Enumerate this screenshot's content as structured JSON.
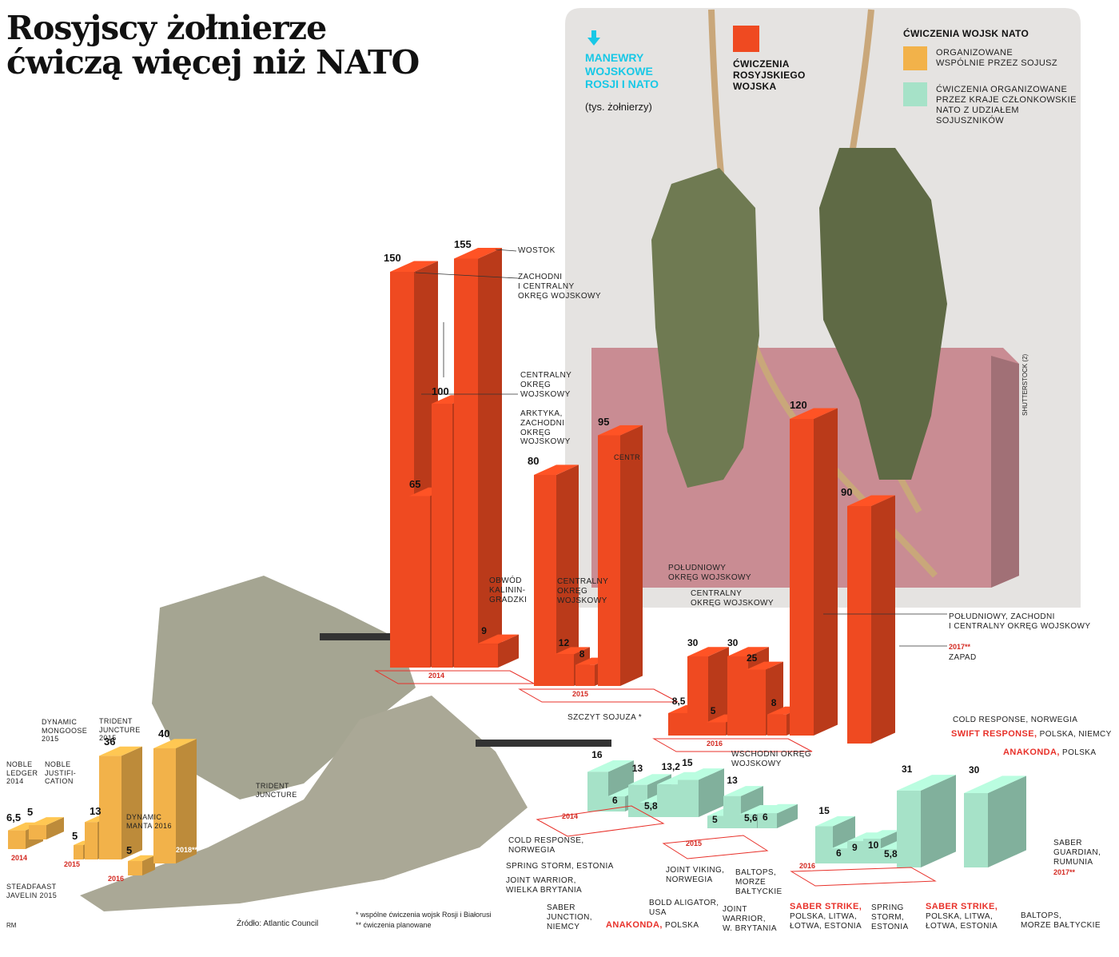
{
  "title": "Rosyjscy żołnierze\nćwiczą więcej niż NATO",
  "legend": {
    "maneuvers": "MANEWRY\nWOJSKOWE\nROSJI I NATO",
    "unit": "(tys. żołnierzy)",
    "russian": "ĆWICZENIA\nROSYJSKIEGO\nWOJSKA",
    "nato_header": "ĆWICZENIA WOJSK NATO",
    "alliance": "ORGANIZOWANE\nWSPÓLNIE PRZEZ SOJUSZ",
    "members": "ĆWICZENIA ORGANIZOWANE\nPRZEZ KRAJE CZŁONKOWSKIE\nNATO Z UDZIAŁEM\nSOJUSZNIKÓW"
  },
  "colors": {
    "russia": "#ef4a21",
    "alliance": "#f2b24a",
    "members": "#a6e2c8",
    "accent_red": "#e8312a",
    "cyan": "#19c8e6",
    "photo_bg": "#e5e3e1",
    "wall": "#c98c93"
  },
  "source": "Źródło: Atlantic Council",
  "footnote1": "* wspólne ćwiczenia wojsk Rosji i Białorusi",
  "footnote2": "** ćwiczenia planowane",
  "credit": "SHUTTERSTOCK (2)",
  "signature": "RM",
  "chart_data": [
    {
      "type": "bar",
      "name": "Ćwiczenia rosyjskiego wojska",
      "unit": "tys. żołnierzy",
      "groups": [
        {
          "year": "2014",
          "bars": [
            {
              "value": 150,
              "label": "150",
              "ex": "ZACHODNI\nI CENTRALNY\nOKRĘG WOJSKOWY"
            },
            {
              "value": 65,
              "label": "65",
              "ex": "ARKTYKA,\nZACHODNI\nOKRĘG\nWOJSKOWY"
            },
            {
              "value": 100,
              "label": "100",
              "ex": "CENTRALNY\nOKRĘG\nWOJSKOWY"
            },
            {
              "value": 155,
              "label": "155",
              "ex": "WOSTOK"
            },
            {
              "value": 9,
              "label": "9",
              "ex": "OBWÓD\nKALININ-\nGRADZKI"
            }
          ]
        },
        {
          "year": "2015",
          "bars": [
            {
              "value": 80,
              "label": "80",
              "ex": ""
            },
            {
              "value": 12,
              "label": "12",
              "ex": "CENTRALNY\nOKRĘG\nWOJSKOWY"
            },
            {
              "value": 8,
              "label": "8",
              "ex": "SZCZYT SOJUZA *"
            },
            {
              "value": 95,
              "label": "95",
              "ex": "CENTR"
            }
          ]
        },
        {
          "year": "2016",
          "bars": [
            {
              "value": 8.5,
              "label": "8,5",
              "ex": ""
            },
            {
              "value": 30,
              "label": "30",
              "ex": "POŁUDNIOWY\nOKRĘG WOJSKOWY"
            },
            {
              "value": 5,
              "label": "5",
              "ex": ""
            },
            {
              "value": 30,
              "label": "30",
              "ex": "CENTRALNY\nOKRĘG WOJSKOWY"
            },
            {
              "value": 25,
              "label": "25",
              "ex": ""
            },
            {
              "value": 8,
              "label": "8",
              "ex": "WSCHODNI OKRĘG\nWOJSKOWY"
            },
            {
              "value": 120,
              "label": "120",
              "ex": "POŁUDNIOWY, ZACHODNI\nI CENTRALNY OKRĘG WOJSKOWY"
            }
          ]
        },
        {
          "year": "2017**",
          "bars": [
            {
              "value": 90,
              "label": "90",
              "ex": "ZAPAD"
            }
          ]
        }
      ],
      "extra_labels": [
        "WSCHODNI\nOKRĘG\nWOJSKOWY"
      ]
    },
    {
      "type": "bar",
      "name": "Organizowane wspólnie przez sojusz",
      "unit": "tys. żołnierzy",
      "groups": [
        {
          "year": "2014",
          "bars": [
            {
              "value": 6.5,
              "label": "6,5",
              "ex": "NOBLE\nLEDGER\n2014"
            },
            {
              "value": 5,
              "label": "5",
              "ex": "NOBLE\nJUSTIFI-\nCATION"
            }
          ]
        },
        {
          "year": "2015",
          "bars": [
            {
              "value": 5,
              "label": "5",
              "ex": "STEADFAAST\nJAVELIN 2015"
            },
            {
              "value": 13,
              "label": "13",
              "ex": "DYNAMIC\nMONGOOSE\n2015"
            },
            {
              "value": 36,
              "label": "36",
              "ex": "TRIDENT\nJUNCTURE\n2015"
            }
          ]
        },
        {
          "year": "2016",
          "bars": [
            {
              "value": 5,
              "label": "5",
              "ex": "DYNAMIC\nMANTA 2016"
            }
          ]
        },
        {
          "year": "2018**",
          "bars": [
            {
              "value": 40,
              "label": "40",
              "ex": "TRIDENT\nJUNCTURE"
            }
          ]
        }
      ]
    },
    {
      "type": "bar",
      "name": "Ćwiczenia organizowane przez kraje członkowskie NATO z udziałem sojuszników",
      "unit": "tys. żołnierzy",
      "groups": [
        {
          "year": "2014",
          "bars": [
            {
              "value": 16,
              "label": "16",
              "ex": "COLD RESPONSE,\nNORWEGIA"
            },
            {
              "value": 6,
              "label": "6",
              "ex": "SPRING STORM, ESTONIA"
            },
            {
              "value": 13,
              "label": "13",
              "ex": "JOINT WARRIOR,\nWIELKA BRYTANIA"
            },
            {
              "value": 5.8,
              "label": "5,8",
              "ex": "SABER\nJUNCTION,\nNIEMCY"
            },
            {
              "value": 13.2,
              "label": "13,2",
              "ex": "BOLD ALIGATOR,\nUSA"
            },
            {
              "value": 15,
              "label": "15",
              "exr": "ANAKONDA,",
              "ex": " POLSKA"
            }
          ]
        },
        {
          "year": "2015",
          "bars": [
            {
              "value": 5,
              "label": "5",
              "ex": "JOINT VIKING,\nNORWEGIA"
            },
            {
              "value": 13,
              "label": "13",
              "ex": "JOINT\nWARRIOR,\nW. BRYTANIA"
            },
            {
              "value": 5.6,
              "label": "5,6",
              "ex": "BALTOPS,\nMORZE\nBAŁTYCKIE"
            },
            {
              "value": 6,
              "label": "6",
              "exr": "SABER STRIKE,",
              "ex": "\nPOLSKA, LITWA,\nŁOTWA, ESTONIA"
            }
          ]
        },
        {
          "year": "2016",
          "bars": [
            {
              "value": 15,
              "label": "15",
              "ex": "COLD RESPONSE, NORWEGIA"
            },
            {
              "value": 6,
              "label": "6",
              "ex": "SPRING\nSTORM,\nESTONIA"
            },
            {
              "value": 9,
              "label": "9",
              "exr": "SWIFT RESPONSE,",
              "ex": " POLSKA, NIEMCY"
            },
            {
              "value": 10,
              "label": "10",
              "exr": "SABER STRIKE,",
              "ex": "\nPOLSKA, LITWA,\nŁOTWA, ESTONIA"
            },
            {
              "value": 5.8,
              "label": "5,8",
              "ex": "BALTOPS,\nMORZE BAŁTYCKIE"
            },
            {
              "value": 31,
              "label": "31",
              "exr": "ANAKONDA,",
              "ex": " POLSKA"
            }
          ]
        },
        {
          "year": "2017**",
          "bars": [
            {
              "value": 30,
              "label": "30",
              "ex": "SABER\nGUARDIAN,\nRUMUNIA"
            }
          ]
        }
      ]
    }
  ]
}
